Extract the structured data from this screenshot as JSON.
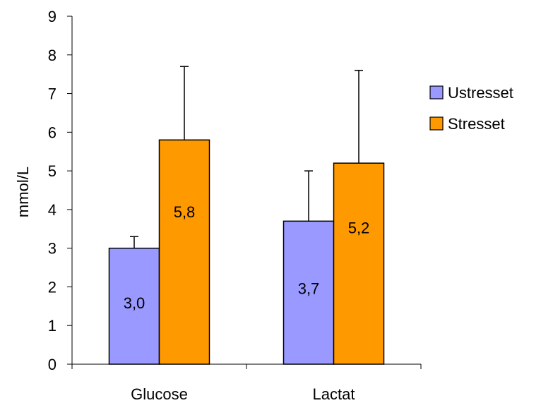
{
  "chart_data": {
    "type": "bar",
    "categories": [
      "Glucose",
      "Lactat"
    ],
    "series": [
      {
        "name": "Ustresset",
        "color": "#9999ff",
        "values": [
          3.0,
          3.7
        ],
        "labels": [
          "3,0",
          "3,7"
        ],
        "error_upper": [
          3.3,
          5.0
        ]
      },
      {
        "name": "Stresset",
        "color": "#ff9900",
        "values": [
          5.8,
          5.2
        ],
        "labels": [
          "5,8",
          "5,2"
        ],
        "error_upper": [
          7.7,
          7.6
        ]
      }
    ],
    "ylabel": "mmol/L",
    "ylim": [
      0,
      9
    ],
    "yticks": [
      "0",
      "1",
      "2",
      "3",
      "4",
      "5",
      "6",
      "7",
      "8",
      "9"
    ],
    "grid": false,
    "legend_position": "right"
  }
}
